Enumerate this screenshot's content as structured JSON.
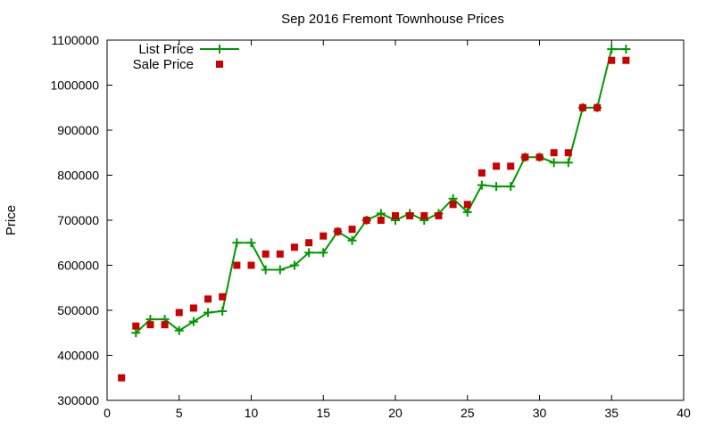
{
  "chart_data": {
    "type": "line",
    "title": "Sep 2016 Fremont Townhouse Prices",
    "xlabel": "",
    "ylabel": "Price",
    "xlim": [
      0,
      40
    ],
    "ylim": [
      300000,
      1100000
    ],
    "x_ticks": [
      0,
      5,
      10,
      15,
      20,
      25,
      30,
      35,
      40
    ],
    "y_ticks": [
      300000,
      400000,
      500000,
      600000,
      700000,
      800000,
      900000,
      1000000,
      1100000
    ],
    "grid": false,
    "legend_position": "top-left",
    "series": [
      {
        "name": "List Price",
        "style": "line-with-plus-markers",
        "color": "#009900",
        "points": [
          [
            2,
            450000
          ],
          [
            3,
            480000
          ],
          [
            4,
            480000
          ],
          [
            5,
            455000
          ],
          [
            6,
            475000
          ],
          [
            7,
            495000
          ],
          [
            8,
            498000
          ],
          [
            9,
            650000
          ],
          [
            10,
            650000
          ],
          [
            11,
            590000
          ],
          [
            12,
            590000
          ],
          [
            13,
            600000
          ],
          [
            14,
            628000
          ],
          [
            15,
            628000
          ],
          [
            16,
            675000
          ],
          [
            17,
            655000
          ],
          [
            18,
            700000
          ],
          [
            19,
            715000
          ],
          [
            20,
            700000
          ],
          [
            21,
            715000
          ],
          [
            22,
            700000
          ],
          [
            23,
            715000
          ],
          [
            24,
            748000
          ],
          [
            25,
            718000
          ],
          [
            26,
            778000
          ],
          [
            27,
            775000
          ],
          [
            28,
            775000
          ],
          [
            29,
            840000
          ],
          [
            30,
            840000
          ],
          [
            31,
            828000
          ],
          [
            32,
            828000
          ],
          [
            33,
            950000
          ],
          [
            34,
            950000
          ],
          [
            35,
            1080000
          ],
          [
            36,
            1080000
          ]
        ]
      },
      {
        "name": "Sale Price",
        "style": "square-markers",
        "color": "#cc0000",
        "points": [
          [
            1,
            350000
          ],
          [
            2,
            465000
          ],
          [
            3,
            468000
          ],
          [
            4,
            468000
          ],
          [
            5,
            495000
          ],
          [
            6,
            505000
          ],
          [
            7,
            525000
          ],
          [
            8,
            530000
          ],
          [
            9,
            600000
          ],
          [
            10,
            600000
          ],
          [
            11,
            625000
          ],
          [
            12,
            625000
          ],
          [
            13,
            640000
          ],
          [
            14,
            650000
          ],
          [
            15,
            665000
          ],
          [
            16,
            675000
          ],
          [
            17,
            680000
          ],
          [
            18,
            700000
          ],
          [
            19,
            700000
          ],
          [
            20,
            710000
          ],
          [
            21,
            710000
          ],
          [
            22,
            710000
          ],
          [
            23,
            710000
          ],
          [
            24,
            735000
          ],
          [
            25,
            735000
          ],
          [
            26,
            805000
          ],
          [
            27,
            820000
          ],
          [
            28,
            820000
          ],
          [
            29,
            840000
          ],
          [
            30,
            840000
          ],
          [
            31,
            850000
          ],
          [
            32,
            850000
          ],
          [
            33,
            950000
          ],
          [
            34,
            950000
          ],
          [
            35,
            1055000
          ],
          [
            36,
            1055000
          ]
        ]
      }
    ]
  }
}
